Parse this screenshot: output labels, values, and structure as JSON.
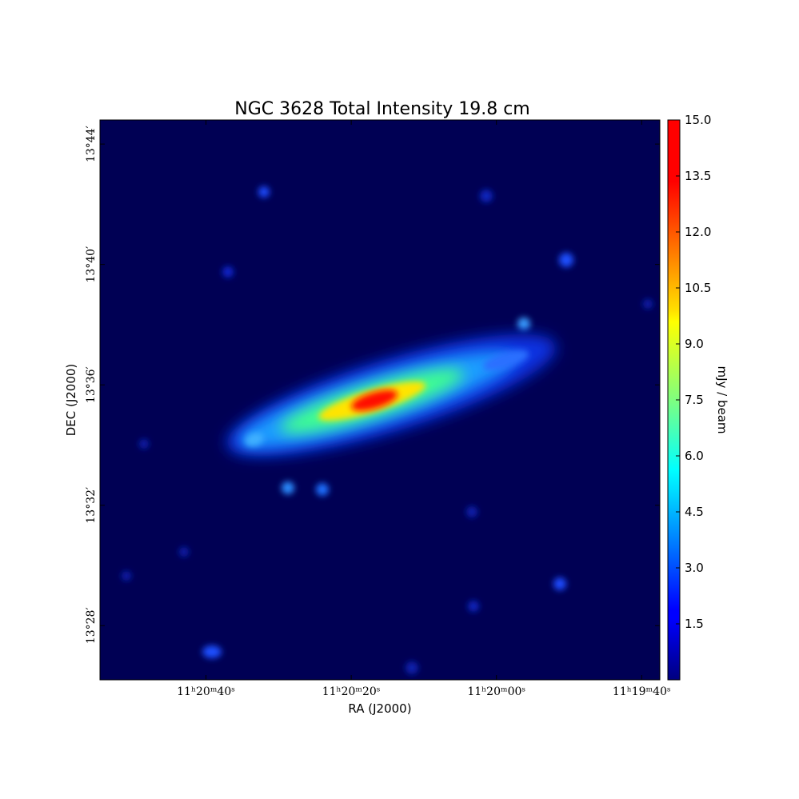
{
  "chart_data": {
    "type": "image",
    "title": "NGC 3628 Total Intensity 19.8 cm",
    "xlabel": "RA (J2000)",
    "ylabel": "DEC (J2000)",
    "xlim": [
      40854.6,
      40777.5
    ],
    "xticks": [
      {
        "value": 40840,
        "label": "11ʰ20ᵐ40ˢ"
      },
      {
        "value": 40820,
        "label": "11ʰ20ᵐ20ˢ"
      },
      {
        "value": 40800,
        "label": "11ʰ20ᵐ00ˢ"
      },
      {
        "value": 40780,
        "label": "11ʰ19ᵐ40ˢ"
      }
    ],
    "ylim": [
      806.2,
      824.8
    ],
    "yticks": [
      {
        "value": 808,
        "label": "13°28′"
      },
      {
        "value": 812,
        "label": "13°32′"
      },
      {
        "value": 816,
        "label": "13°36′"
      },
      {
        "value": 820,
        "label": "13°40′"
      },
      {
        "value": 824,
        "label": "13°44′"
      }
    ],
    "colorbar": {
      "label": "mJy / beam",
      "colormap": "jet",
      "clim": [
        0,
        15
      ],
      "ticks": [
        1.5,
        {
          "value": 3,
          "label": "3.0"
        },
        4.5,
        {
          "value": 6,
          "label": "6.0"
        },
        7.5,
        {
          "value": 9,
          "label": "9.0"
        },
        10.5,
        {
          "value": 12,
          "label": "12.0"
        },
        13.5,
        {
          "value": 15,
          "label": "15.0"
        }
      ]
    }
  }
}
